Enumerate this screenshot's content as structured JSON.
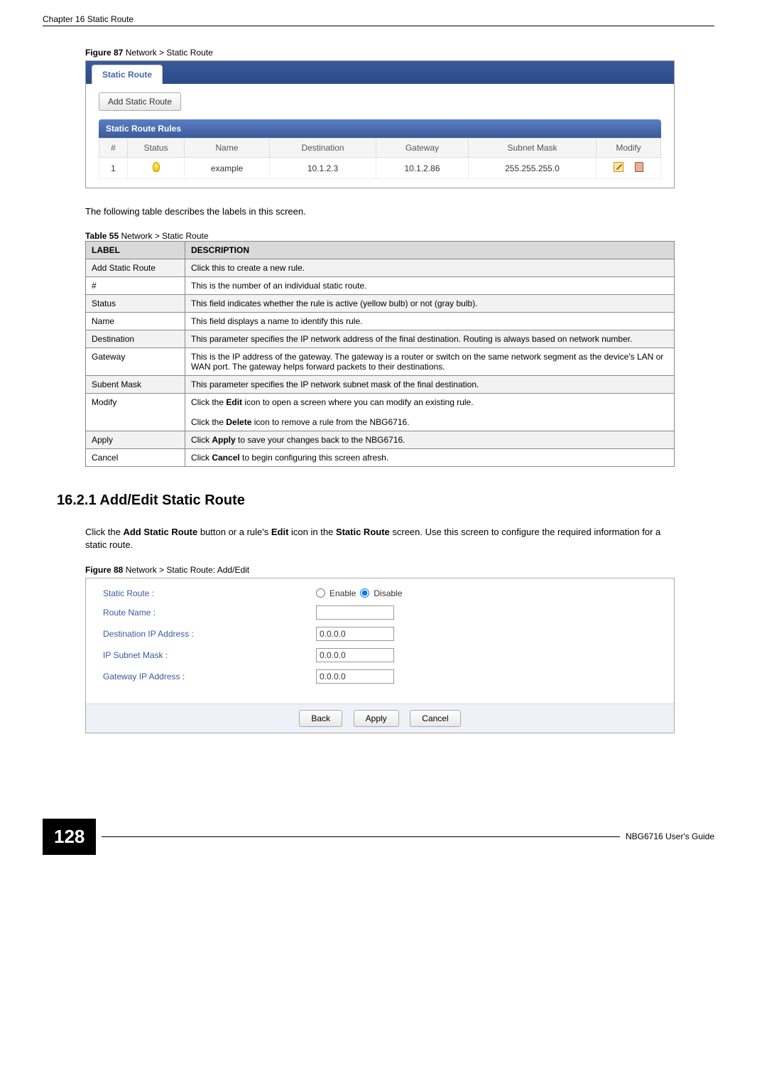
{
  "chapter_header": "Chapter 16 Static Route",
  "figure87": {
    "caption_bold": "Figure 87",
    "caption_rest": "   Network > Static Route",
    "tab_label": "Static Route",
    "add_button": "Add Static Route",
    "rules_header": "Static Route Rules",
    "columns": {
      "num": "#",
      "status": "Status",
      "name": "Name",
      "destination": "Destination",
      "gateway": "Gateway",
      "subnet": "Subnet Mask",
      "modify": "Modify"
    },
    "row": {
      "num": "1",
      "name": "example",
      "destination": "10.1.2.3",
      "gateway": "10.1.2.86",
      "subnet": "255.255.255.0"
    }
  },
  "intro_text": "The following table describes the labels in this screen.",
  "table55": {
    "caption_bold": "Table 55",
    "caption_rest": "   Network > Static Route",
    "header_label": "LABEL",
    "header_desc": "DESCRIPTION",
    "rows": [
      {
        "label": "Add Static Route",
        "desc": "Click this to create a new rule."
      },
      {
        "label": "#",
        "desc": "This is the number of an individual static route."
      },
      {
        "label": "Status",
        "desc": "This field indicates whether the rule is active (yellow bulb) or not (gray bulb)."
      },
      {
        "label": "Name",
        "desc": "This field displays a name to identify this rule."
      },
      {
        "label": "Destination",
        "desc": "This parameter specifies the IP network address of the final destination. Routing is always based on network number."
      },
      {
        "label": "Gateway",
        "desc": "This is the IP address of the gateway. The gateway is a router or switch on the same network segment as the device's LAN or WAN port. The gateway helps forward packets to their destinations."
      },
      {
        "label": "Subent Mask",
        "desc": "This parameter specifies the IP network subnet mask of the final destination."
      },
      {
        "label": "Modify",
        "desc_html": "Click the <b>Edit</b> icon to open a screen where you can modify an existing rule.<br><br>Click the <b>Delete</b> icon to remove a rule from the NBG6716."
      },
      {
        "label": "Apply",
        "desc_html": "Click <b>Apply</b> to save your changes back to the NBG6716."
      },
      {
        "label": "Cancel",
        "desc_html": "Click <b>Cancel</b> to begin configuring this screen afresh."
      }
    ]
  },
  "section_heading": "16.2.1  Add/Edit Static Route",
  "section_body_html": "Click the <b>Add Static Route</b> button or a rule's <b>Edit</b> icon in the <b>Static Route</b> screen. Use this screen to configure the required information for a static route.",
  "figure88": {
    "caption_bold": "Figure 88",
    "caption_rest": "   Network > Static Route: Add/Edit",
    "fields": {
      "static_route": "Static Route :",
      "route_name": "Route Name :",
      "dest_ip": "Destination IP Address :",
      "subnet": "IP Subnet Mask :",
      "gateway": "Gateway IP Address :"
    },
    "enable": "Enable",
    "disable": "Disable",
    "values": {
      "dest_ip": "0.0.0.0",
      "subnet": "0.0.0.0",
      "gateway": "0.0.0.0"
    },
    "buttons": {
      "back": "Back",
      "apply": "Apply",
      "cancel": "Cancel"
    }
  },
  "footer": {
    "page": "128",
    "guide": "NBG6716 User's Guide"
  },
  "colors": {
    "tab_bg": "#3a5a9a",
    "link_blue": "#4668a8",
    "table_header_bg": "#d9d9d9"
  }
}
